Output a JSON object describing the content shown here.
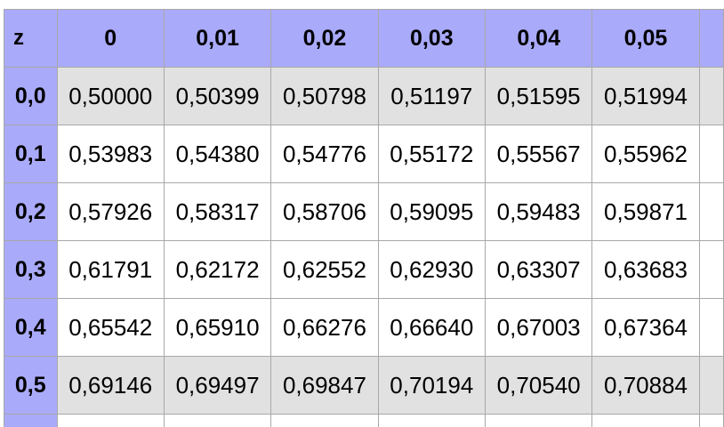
{
  "table": {
    "corner_label": "z",
    "columns": [
      "0",
      "0,01",
      "0,02",
      "0,03",
      "0,04",
      "0,05"
    ],
    "rows": [
      {
        "z": "0,0",
        "values": [
          "0,50000",
          "0,50399",
          "0,50798",
          "0,51197",
          "0,51595",
          "0,51994"
        ],
        "shaded": true
      },
      {
        "z": "0,1",
        "values": [
          "0,53983",
          "0,54380",
          "0,54776",
          "0,55172",
          "0,55567",
          "0,55962"
        ],
        "shaded": false
      },
      {
        "z": "0,2",
        "values": [
          "0,57926",
          "0,58317",
          "0,58706",
          "0,59095",
          "0,59483",
          "0,59871"
        ],
        "shaded": false
      },
      {
        "z": "0,3",
        "values": [
          "0,61791",
          "0,62172",
          "0,62552",
          "0,62930",
          "0,63307",
          "0,63683"
        ],
        "shaded": false
      },
      {
        "z": "0,4",
        "values": [
          "0,65542",
          "0,65910",
          "0,66276",
          "0,66640",
          "0,67003",
          "0,67364"
        ],
        "shaded": false
      },
      {
        "z": "0,5",
        "values": [
          "0,69146",
          "0,69497",
          "0,69847",
          "0,70194",
          "0,70540",
          "0,70884"
        ],
        "shaded": true
      }
    ]
  },
  "colors": {
    "header_background": "#aaaafa",
    "shaded_row_background": "#e1e1e1",
    "row_background": "#ffffff",
    "border": "#a8a8a8"
  }
}
